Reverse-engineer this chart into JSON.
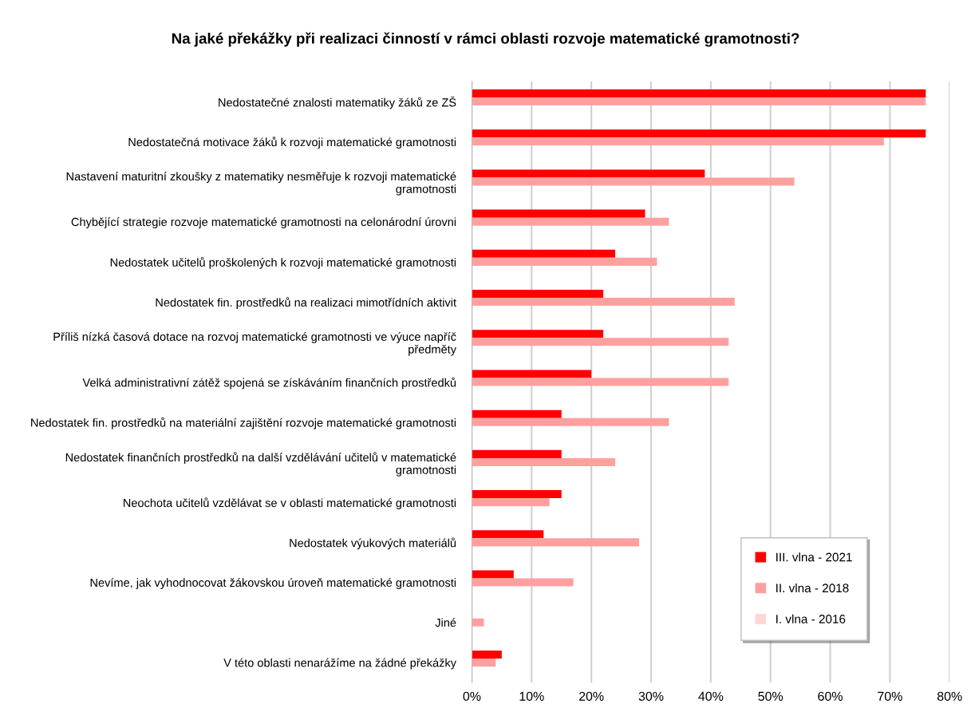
{
  "chart_data": {
    "type": "bar",
    "orientation": "horizontal",
    "title": "Na jaké překážky při realizaci činností v rámci oblasti rozvoje matematické gramotnosti?",
    "categories": [
      "Nedostatečné znalosti matematiky žáků ze ZŠ",
      "Nedostatečná motivace žáků k rozvoji matematické gramotnosti",
      "Nastavení maturitní zkoušky z matematiky nesměřuje k rozvoji matematické\ngramotnosti",
      "Chybějící strategie rozvoje matematické gramotnosti na celonárodní úrovni",
      "Nedostatek učitelů proškolených k rozvoji matematické gramotnosti",
      "Nedostatek fin. prostředků na realizaci mimotřídních aktivit",
      "Příliš nízká časová dotace na rozvoj matematické gramotnosti ve výuce napříč\npředměty",
      "Velká administrativní zátěž spojená se získáváním finančních prostředků",
      "Nedostatek fin. prostředků na materiální zajištění rozvoje matematické gramotnosti",
      "Nedostatek finančních prostředků na další vzdělávání učitelů v matematické\ngramotnosti",
      "Neochota učitelů vzdělávat se v oblasti matematické gramotnosti",
      "Nedostatek výukových materiálů",
      "Nevíme, jak vyhodnocovat žákovskou úroveň matematické gramotnosti",
      "Jiné",
      "V této oblasti nenarážíme na žádné překážky"
    ],
    "series": [
      {
        "name": "III. vlna - 2021",
        "color": "#ff0000",
        "values": [
          76,
          76,
          39,
          29,
          24,
          22,
          22,
          20,
          15,
          15,
          15,
          12,
          7,
          null,
          5
        ]
      },
      {
        "name": "II. vlna - 2018",
        "color": "#ffa0a0",
        "values": [
          76,
          69,
          54,
          33,
          31,
          44,
          43,
          43,
          33,
          24,
          13,
          28,
          17,
          2,
          4
        ]
      },
      {
        "name": "I. vlna - 2016",
        "color": "#ffd5d5",
        "values": [
          null,
          null,
          null,
          null,
          null,
          null,
          null,
          null,
          null,
          null,
          null,
          null,
          null,
          null,
          null
        ]
      }
    ],
    "xlim": [
      0,
      80
    ],
    "xticks": [
      {
        "value": 0,
        "label": "0%"
      },
      {
        "value": 10,
        "label": "10%"
      },
      {
        "value": 20,
        "label": "20%"
      },
      {
        "value": 30,
        "label": "30%"
      },
      {
        "value": 40,
        "label": "40%"
      },
      {
        "value": 50,
        "label": "50%"
      },
      {
        "value": 60,
        "label": "60%"
      },
      {
        "value": 70,
        "label": "70%"
      },
      {
        "value": 80,
        "label": "80%"
      }
    ],
    "grid": "x",
    "legend": "bottom right"
  }
}
